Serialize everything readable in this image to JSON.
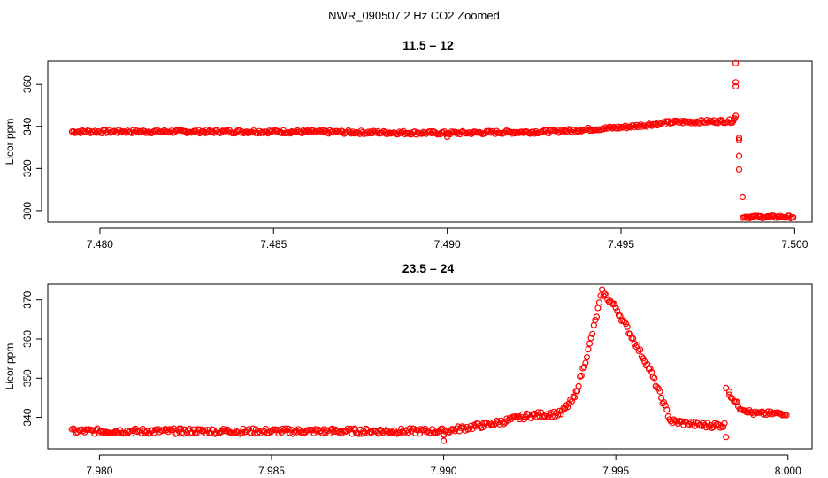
{
  "figure": {
    "main_title": "NWR_090507  2 Hz CO2 Zoomed",
    "point_color": "#ff0000"
  },
  "chart_data": [
    {
      "type": "scatter",
      "title": "11.5 – 12",
      "xlabel": "",
      "ylabel": "Licor ppm",
      "xlim": [
        7.4785,
        7.5005
      ],
      "ylim": [
        294.5,
        371
      ],
      "xticks": [
        7.48,
        7.485,
        7.49,
        7.495,
        7.5
      ],
      "xtick_labels": [
        "7.480",
        "7.485",
        "7.490",
        "7.495",
        "7.500"
      ],
      "yticks": [
        300,
        320,
        340,
        360
      ],
      "ytick_labels": [
        "300",
        "320",
        "340",
        "360"
      ],
      "grid": false,
      "marker": "open-circle",
      "trend": [
        {
          "x": 7.4792,
          "y": 337.5
        },
        {
          "x": 7.485,
          "y": 337.5
        },
        {
          "x": 7.49,
          "y": 336.8
        },
        {
          "x": 7.493,
          "y": 337.5
        },
        {
          "x": 7.495,
          "y": 339.5
        },
        {
          "x": 7.4965,
          "y": 342.0
        },
        {
          "x": 7.4982,
          "y": 342.5
        },
        {
          "x": 7.4983,
          "y": 344.0
        }
      ],
      "trend_spread": 1.6,
      "points": [
        {
          "x": 7.4983,
          "y": 370.0
        },
        {
          "x": 7.4983,
          "y": 361.0
        },
        {
          "x": 7.4983,
          "y": 359.0
        },
        {
          "x": 7.4983,
          "y": 345.0
        },
        {
          "x": 7.4984,
          "y": 334.5
        },
        {
          "x": 7.4984,
          "y": 333.5
        },
        {
          "x": 7.4984,
          "y": 326.0
        },
        {
          "x": 7.4984,
          "y": 319.5
        },
        {
          "x": 7.4985,
          "y": 306.5
        },
        {
          "x": 7.49,
          "y": 335.0
        }
      ],
      "trend2": [
        {
          "x": 7.4985,
          "y": 297.0
        },
        {
          "x": 7.5,
          "y": 297.0
        }
      ],
      "trend2_spread": 1.2
    },
    {
      "type": "scatter",
      "title": "23.5 – 24",
      "xlabel": "",
      "ylabel": "Licor ppm",
      "xlim": [
        7.9785,
        8.0007
      ],
      "ylim": [
        332,
        374
      ],
      "xticks": [
        7.98,
        7.985,
        7.99,
        7.995,
        8.0
      ],
      "xtick_labels": [
        "7.980",
        "7.985",
        "7.990",
        "7.995",
        "8.000"
      ],
      "yticks": [
        340,
        350,
        360,
        370
      ],
      "ytick_labels": [
        "340",
        "350",
        "360",
        "370"
      ],
      "grid": false,
      "marker": "open-circle",
      "trend": [
        {
          "x": 7.9792,
          "y": 336.5
        },
        {
          "x": 7.985,
          "y": 336.5
        },
        {
          "x": 7.99,
          "y": 336.5
        },
        {
          "x": 7.9915,
          "y": 338.5
        },
        {
          "x": 7.9925,
          "y": 340.5
        },
        {
          "x": 7.9934,
          "y": 341.0
        },
        {
          "x": 7.9938,
          "y": 345.0
        },
        {
          "x": 7.9942,
          "y": 357.0
        },
        {
          "x": 7.9946,
          "y": 372.0
        },
        {
          "x": 7.995,
          "y": 368.0
        },
        {
          "x": 7.996,
          "y": 352.0
        },
        {
          "x": 7.9966,
          "y": 339.0
        },
        {
          "x": 7.9975,
          "y": 338.0
        },
        {
          "x": 7.9982,
          "y": 338.0
        }
      ],
      "trend_spread": 1.4,
      "points": [
        {
          "x": 7.9982,
          "y": 347.5
        },
        {
          "x": 7.9983,
          "y": 346.5
        },
        {
          "x": 7.9982,
          "y": 335.0
        },
        {
          "x": 7.99,
          "y": 334.0
        },
        {
          "x": 7.99,
          "y": 335.5
        }
      ],
      "trend2": [
        {
          "x": 7.9983,
          "y": 346.0
        },
        {
          "x": 7.9986,
          "y": 342.5
        },
        {
          "x": 7.999,
          "y": 341.0
        },
        {
          "x": 8.0,
          "y": 341.0
        }
      ],
      "trend2_spread": 1.0
    }
  ]
}
